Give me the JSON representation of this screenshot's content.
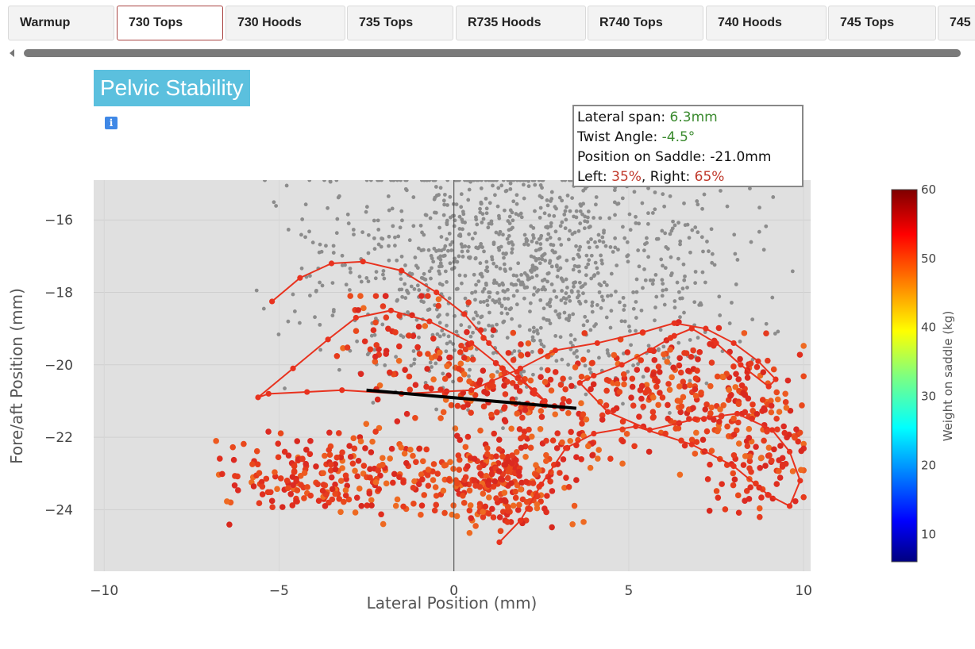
{
  "tabs": [
    {
      "label": "Warmup",
      "active": false
    },
    {
      "label": "730 Tops",
      "active": true
    },
    {
      "label": "730 Hoods",
      "active": false
    },
    {
      "label": "735 Tops",
      "active": false
    },
    {
      "label": "R735 Hoods",
      "active": false
    },
    {
      "label": "R740 Tops",
      "active": false
    },
    {
      "label": "740 Hoods",
      "active": false
    },
    {
      "label": "745 Tops",
      "active": false
    },
    {
      "label": "745",
      "active": false
    }
  ],
  "panel": {
    "title": "Pelvic Stability",
    "info_icon": "info-icon"
  },
  "stats": {
    "lateral_span_label": "Lateral span: ",
    "lateral_span_value": "6.3mm",
    "twist_label": "Twist Angle: ",
    "twist_value": "-4.5°",
    "position_label": "Position on Saddle: ",
    "position_value": "-21.0mm",
    "left_label": "Left: ",
    "left_value": "35%",
    "right_label": ", Right: ",
    "right_value": "65%"
  },
  "colors": {
    "accent": "#5bc0de",
    "plot_bg": "#e0e0e0",
    "grey_points": "#8c8c8c",
    "trace_line": "#e8321e",
    "twist_line": "#000000"
  },
  "chart_data": {
    "type": "scatter",
    "xlabel": "Lateral Position (mm)",
    "ylabel": "Fore/aft Position (mm)",
    "xlim": [
      -10.3,
      10.2
    ],
    "ylim": [
      -25.7,
      -14.9
    ],
    "xticks": [
      -10,
      -5,
      0,
      5,
      10
    ],
    "yticks": [
      -16,
      -18,
      -20,
      -22,
      -24
    ],
    "grid": true,
    "colorbar": {
      "label": "Weight on saddle (kg)",
      "range": [
        6,
        60
      ],
      "ticks": [
        10,
        20,
        30,
        40,
        50,
        60
      ],
      "colormap": "jet"
    },
    "twist_segment": {
      "x": [
        -2.5,
        3.5
      ],
      "y": [
        -20.7,
        -21.2
      ]
    },
    "trajectory": {
      "name": "center of pressure path",
      "x": [
        -5.2,
        -4.4,
        -3.5,
        -2.6,
        -1.5,
        -0.5,
        0.3,
        1.0,
        1.8,
        2.3,
        2.6,
        2.3,
        1.4,
        0.5,
        -0.7,
        -1.8,
        -2.8,
        -3.6,
        -4.6,
        -5.6,
        -5.3,
        -4.2,
        -3.2,
        -1.5,
        0.5,
        1.9,
        2.9,
        4.1,
        5.4,
        6.3,
        7.2,
        8.0,
        8.7,
        9.2,
        9.0,
        8.2,
        7.5,
        6.8,
        6.3,
        5.6,
        4.8,
        4.0,
        3.6,
        4.4,
        5.6,
        6.9,
        8.1,
        9.1,
        9.6,
        9.9,
        9.6,
        9.0,
        8.0,
        6.8,
        5.2,
        4.0,
        3.2,
        2.5,
        1.9,
        1.3
      ],
      "y": [
        -18.25,
        -17.6,
        -17.2,
        -17.15,
        -17.4,
        -18.0,
        -18.6,
        -19.4,
        -20.2,
        -20.8,
        -21.0,
        -20.7,
        -20.1,
        -19.4,
        -18.8,
        -18.5,
        -18.7,
        -19.3,
        -20.1,
        -20.9,
        -20.8,
        -20.75,
        -20.7,
        -20.8,
        -20.7,
        -20.1,
        -19.6,
        -19.4,
        -19.1,
        -18.85,
        -19.0,
        -19.4,
        -19.9,
        -20.4,
        -20.6,
        -20.0,
        -19.4,
        -19.0,
        -19.2,
        -19.6,
        -20.0,
        -20.3,
        -20.5,
        -21.3,
        -21.8,
        -21.5,
        -21.35,
        -21.8,
        -22.4,
        -23.2,
        -23.9,
        -23.6,
        -22.8,
        -22.2,
        -21.7,
        -21.9,
        -22.3,
        -23.3,
        -24.3,
        -24.9
      ]
    },
    "scatter_series": [
      {
        "name": "high-load samples",
        "color": "colormap (~50-58 kg)",
        "x_range": [
          -6.8,
          10.0
        ],
        "y_range": [
          -24.8,
          -18.1
        ],
        "count_approx": 1100
      },
      {
        "name": "low-load samples",
        "color": "#8c8c8c",
        "x_range": [
          -6.5,
          10.2
        ],
        "y_range": [
          -25.7,
          -14.9
        ],
        "count_approx": 1100
      }
    ]
  }
}
